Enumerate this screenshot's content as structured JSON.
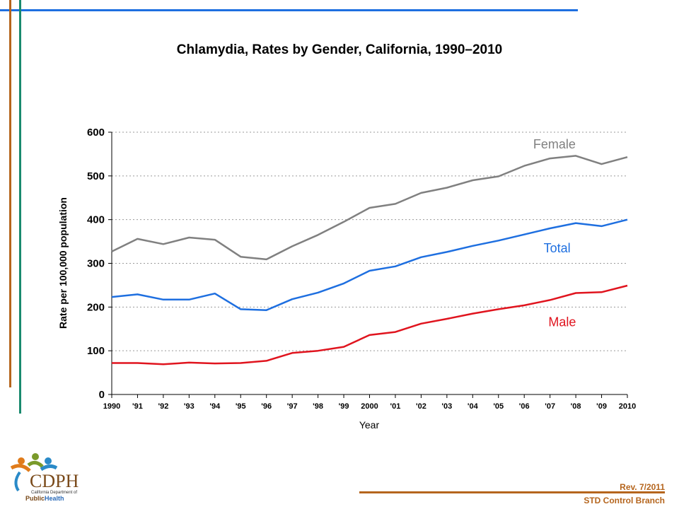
{
  "chart_data": {
    "type": "line",
    "title": "Chlamydia, Rates by Gender, California, 1990–2010",
    "xlabel": "Year",
    "ylabel": "Rate per 100,000 population",
    "ylim": [
      0,
      600
    ],
    "yticks": [
      "0",
      "100",
      "200",
      "300",
      "400",
      "500",
      "600"
    ],
    "categories": [
      "1990",
      "'91",
      "'92",
      "'93",
      "'94",
      "'95",
      "'96",
      "'97",
      "'98",
      "'99",
      "2000",
      "'01",
      "'02",
      "'03",
      "'04",
      "'05",
      "'06",
      "'07",
      "'08",
      "'09",
      "2010"
    ],
    "grid": true,
    "legend": "inline labels",
    "series": [
      {
        "name": "Female",
        "color": "#808080",
        "values": [
          327,
          356,
          344,
          359,
          354,
          315,
          309,
          339,
          365,
          395,
          427,
          436,
          461,
          473,
          490,
          499,
          523,
          540,
          546,
          527,
          543
        ]
      },
      {
        "name": "Total",
        "color": "#1e6fe0",
        "values": [
          223,
          229,
          217,
          217,
          231,
          195,
          193,
          218,
          233,
          254,
          283,
          293,
          314,
          326,
          340,
          352,
          366,
          380,
          392,
          385,
          400
        ]
      },
      {
        "name": "Male",
        "color": "#e0141e",
        "values": [
          72,
          72,
          69,
          73,
          71,
          72,
          77,
          95,
          100,
          109,
          136,
          143,
          162,
          173,
          185,
          195,
          204,
          216,
          232,
          234,
          249
        ]
      }
    ]
  },
  "footer": {
    "rev": "Rev. 7/2011",
    "branch": "STD Control Branch"
  },
  "logo": {
    "name": "CDPH",
    "sub": "California Department of",
    "public": "Public",
    "health": "Health"
  }
}
